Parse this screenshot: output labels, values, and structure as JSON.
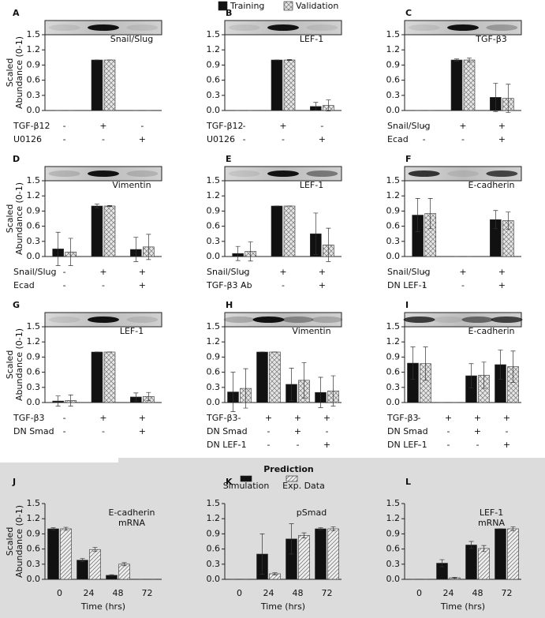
{
  "legend": [
    {
      "name": "Training",
      "color": "#111111"
    },
    {
      "name": "Validation",
      "color": "#cccccc"
    }
  ],
  "legend_bottom": {
    "title": "Prediction",
    "items": [
      {
        "name": "Simulation",
        "color": "#111111"
      },
      {
        "name": "Exp. Data",
        "color": "#dddddd"
      }
    ]
  },
  "chart_data": [
    {
      "type": "bar",
      "letter": "A",
      "annotation": [
        "Snail/Slug"
      ],
      "ylabel": [
        "Scaled",
        "Abundance (0-1)"
      ],
      "ylim": [
        0,
        1.5
      ],
      "yticks": [
        {
          "value": 0,
          "label": "0.0"
        },
        0.3,
        0.6,
        0.9,
        1.2,
        1.5
      ],
      "series": [
        {
          "values": [
            0,
            1,
            0
          ],
          "errors": [
            0,
            0,
            0
          ]
        },
        {
          "values": [
            0,
            1,
            0
          ],
          "errors": [
            0,
            0,
            0
          ]
        }
      ],
      "conditions": [
        {
          "name": "TGF-β12",
          "marks": [
            "-",
            "+",
            "-"
          ]
        },
        {
          "name": "U0126",
          "marks": [
            "-",
            "-",
            "+"
          ]
        }
      ]
    },
    {
      "type": "bar",
      "letter": "B",
      "annotation": [
        "LEF-1"
      ],
      "ylim": [
        0,
        1.5
      ],
      "yticks": [
        {
          "value": 0,
          "label": "0.0"
        },
        0.3,
        0.6,
        0.9,
        1.2,
        1.5
      ],
      "series": [
        {
          "values": [
            0,
            1,
            0.08
          ],
          "errors": [
            0,
            0,
            0.08
          ]
        },
        {
          "values": [
            0,
            1,
            0.1
          ],
          "errors": [
            0,
            0.01,
            0.11
          ]
        }
      ],
      "conditions": [
        {
          "name": "TGF-β12",
          "marks": [
            "-",
            "+",
            "-"
          ]
        },
        {
          "name": "U0126",
          "marks": [
            "-",
            "-",
            "+"
          ]
        }
      ]
    },
    {
      "type": "bar",
      "letter": "C",
      "annotation": [
        "TGF-β3"
      ],
      "ylim": [
        0,
        1.5
      ],
      "yticks": [
        {
          "value": 0,
          "label": "0.0"
        },
        0.3,
        0.6,
        0.9,
        1.2,
        1.5
      ],
      "series": [
        {
          "values": [
            0,
            1,
            0.26
          ],
          "errors": [
            0,
            0.02,
            0.28
          ]
        },
        {
          "values": [
            0,
            1,
            0.24
          ],
          "errors": [
            0,
            0.04,
            0.28
          ]
        }
      ],
      "conditions": [
        {
          "name": "Snail/Slug",
          "marks": [
            "-",
            "+",
            "+"
          ]
        },
        {
          "name": "Ecad",
          "marks": [
            "-",
            "-",
            "+"
          ]
        }
      ]
    },
    {
      "type": "bar",
      "letter": "D",
      "annotation": [
        "Vimentin"
      ],
      "ylabel": [
        "Scaled",
        "Abundance (0-1)"
      ],
      "ylim": [
        0,
        1.5
      ],
      "yticks": [
        {
          "value": 0,
          "label": "0.0"
        },
        0.3,
        0.6,
        0.9,
        1.2,
        1.5
      ],
      "series": [
        {
          "values": [
            0.15,
            1,
            0.14
          ],
          "errors": [
            0.33,
            0.04,
            0.24
          ]
        },
        {
          "values": [
            0.09,
            1,
            0.19
          ],
          "errors": [
            0.27,
            0.01,
            0.25
          ]
        }
      ],
      "conditions": [
        {
          "name": "Snail/Slug",
          "marks": [
            "-",
            "+",
            "+"
          ]
        },
        {
          "name": "Ecad",
          "marks": [
            "-",
            "-",
            "+"
          ]
        }
      ]
    },
    {
      "type": "bar",
      "letter": "E",
      "annotation": [
        "LEF-1"
      ],
      "ylim": [
        0,
        1.5
      ],
      "yticks": [
        {
          "value": 0,
          "label": "0.0"
        },
        0.3,
        0.6,
        0.9,
        1.2,
        1.5
      ],
      "series": [
        {
          "values": [
            0.06,
            1,
            0.45
          ],
          "errors": [
            0.14,
            0,
            0.41
          ]
        },
        {
          "values": [
            0.1,
            1,
            0.23
          ],
          "errors": [
            0.19,
            0,
            0.33
          ]
        }
      ],
      "conditions": [
        {
          "name": "Snail/Slug",
          "marks": [
            "-",
            "+",
            "+"
          ]
        },
        {
          "name": "TGF-β3 Ab",
          "marks": [
            "-",
            "-",
            "+"
          ]
        }
      ]
    },
    {
      "type": "bar",
      "letter": "F",
      "annotation": [
        "E-cadherin"
      ],
      "ylim": [
        0,
        1.5
      ],
      "yticks": [
        {
          "value": 0,
          "label": "0.0"
        },
        0.3,
        0.6,
        0.9,
        1.2,
        1.5
      ],
      "series": [
        {
          "values": [
            0.82,
            0,
            0.73
          ],
          "errors": [
            0.33,
            0,
            0.18
          ]
        },
        {
          "values": [
            0.85,
            0,
            0.71
          ],
          "errors": [
            0.3,
            0,
            0.17
          ]
        }
      ],
      "conditions": [
        {
          "name": "Snail/Slug",
          "marks": [
            "-",
            "+",
            "+"
          ]
        },
        {
          "name": "DN LEF-1",
          "marks": [
            "-",
            "-",
            "+"
          ]
        }
      ]
    },
    {
      "type": "bar",
      "letter": "G",
      "annotation": [
        "LEF-1"
      ],
      "ylabel": [
        "Scaled",
        "Abundance (0-1)"
      ],
      "ylim": [
        0,
        1.5
      ],
      "yticks": [
        {
          "value": 0,
          "label": "0.0"
        },
        0.3,
        0.6,
        0.9,
        1.2,
        1.5
      ],
      "series": [
        {
          "values": [
            0.03,
            1,
            0.11
          ],
          "errors": [
            0.1,
            0,
            0.08
          ]
        },
        {
          "values": [
            0.04,
            1,
            0.12
          ],
          "errors": [
            0.11,
            0,
            0.08
          ]
        }
      ],
      "conditions": [
        {
          "name": "TGF-β3",
          "marks": [
            "-",
            "+",
            "+"
          ]
        },
        {
          "name": "DN Smad",
          "marks": [
            "-",
            "-",
            "+"
          ]
        }
      ]
    },
    {
      "type": "bar",
      "letter": "H",
      "annotation": [
        "Vimentin"
      ],
      "ylim": [
        0,
        1.5
      ],
      "yticks": [
        {
          "value": 0,
          "label": "0.0"
        },
        0.3,
        0.6,
        0.9,
        1.2,
        1.5
      ],
      "series": [
        {
          "values": [
            0.21,
            1,
            0.36,
            0.2
          ],
          "errors": [
            0.39,
            0,
            0.32,
            0.3
          ]
        },
        {
          "values": [
            0.28,
            1,
            0.44,
            0.23
          ],
          "errors": [
            0.39,
            0,
            0.35,
            0.3
          ]
        }
      ],
      "conditions": [
        {
          "name": "TGF-β3",
          "marks": [
            "-",
            "+",
            "+",
            "+"
          ]
        },
        {
          "name": "DN Smad",
          "marks": [
            "-",
            "-",
            "+",
            "-"
          ]
        },
        {
          "name": "DN LEF-1",
          "marks": [
            "-",
            "-",
            "-",
            "+"
          ]
        }
      ]
    },
    {
      "type": "bar",
      "letter": "I",
      "annotation": [
        "E-cadherin"
      ],
      "ylim": [
        0,
        1.5
      ],
      "yticks": [
        {
          "value": 0,
          "label": "0.0"
        },
        0.3,
        0.6,
        0.9,
        1.2,
        1.5
      ],
      "series": [
        {
          "values": [
            0.78,
            0,
            0.53,
            0.75
          ],
          "errors": [
            0.32,
            0,
            0.24,
            0.29
          ]
        },
        {
          "values": [
            0.77,
            0,
            0.54,
            0.71
          ],
          "errors": [
            0.33,
            0,
            0.26,
            0.31
          ]
        }
      ],
      "conditions": [
        {
          "name": "TGF-β3",
          "marks": [
            "-",
            "+",
            "+",
            "+"
          ]
        },
        {
          "name": "DN Smad",
          "marks": [
            "-",
            "-",
            "+",
            "-"
          ]
        },
        {
          "name": "DN LEF-1",
          "marks": [
            "-",
            "-",
            "-",
            "+"
          ]
        }
      ]
    },
    {
      "type": "bar",
      "letter": "J",
      "annotation": [
        "E-cadherin",
        "mRNA"
      ],
      "ylabel": [
        "Scaled",
        "Abundance (0-1)"
      ],
      "ylim": [
        0,
        1.5
      ],
      "yticks": [
        {
          "value": 0,
          "label": "0.0"
        },
        0.3,
        0.6,
        0.9,
        1.2,
        1.5
      ],
      "categories": [
        "0",
        "24",
        "48",
        "72"
      ],
      "xlabel": "Time (hrs)",
      "series": [
        {
          "values": [
            1,
            0.38,
            0.08,
            0
          ],
          "errors": [
            0.02,
            0.03,
            0.01,
            0
          ]
        },
        {
          "values": [
            1,
            0.59,
            0.3,
            0
          ],
          "errors": [
            0.03,
            0.04,
            0.03,
            0
          ]
        }
      ]
    },
    {
      "type": "bar",
      "letter": "K",
      "annotation": [
        "pSmad"
      ],
      "ylim": [
        0,
        1.5
      ],
      "yticks": [
        {
          "value": 0,
          "label": "0.0"
        },
        0.3,
        0.6,
        0.9,
        1.2,
        1.5
      ],
      "categories": [
        "0",
        "24",
        "48",
        "72"
      ],
      "xlabel": "Time (hrs)",
      "series": [
        {
          "values": [
            0,
            0.5,
            0.8,
            1
          ],
          "errors": [
            0,
            0.4,
            0.3,
            0.02
          ]
        },
        {
          "values": [
            0,
            0.11,
            0.87,
            1
          ],
          "errors": [
            0,
            0.02,
            0.05,
            0.04
          ]
        }
      ]
    },
    {
      "type": "bar",
      "letter": "L",
      "annotation": [
        "LEF-1",
        "mRNA"
      ],
      "ylim": [
        0,
        1.5
      ],
      "yticks": [
        {
          "value": 0,
          "label": "0.0"
        },
        0.3,
        0.6,
        0.9,
        1.2,
        1.5
      ],
      "categories": [
        "0",
        "24",
        "48",
        "72"
      ],
      "xlabel": "Time (hrs)",
      "series": [
        {
          "values": [
            0,
            0.32,
            0.68,
            1
          ],
          "errors": [
            0,
            0.07,
            0.07,
            0
          ]
        },
        {
          "values": [
            0,
            0.03,
            0.61,
            1
          ],
          "errors": [
            0,
            0.01,
            0.06,
            0.04
          ]
        }
      ]
    }
  ]
}
